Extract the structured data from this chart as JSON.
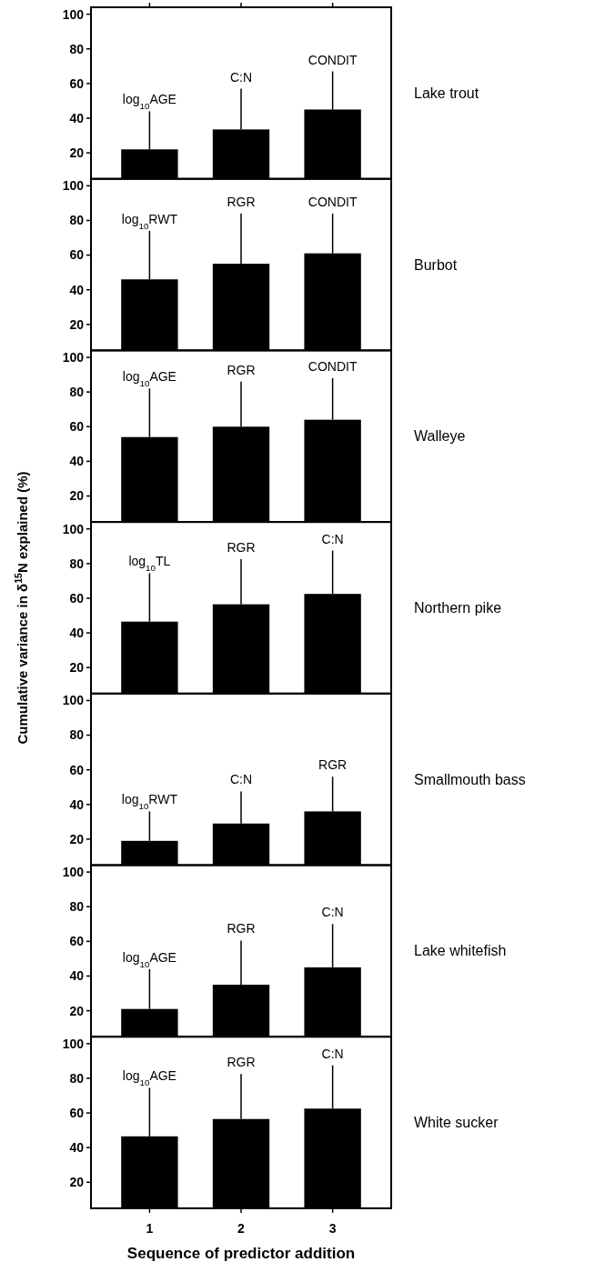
{
  "chart_data": [
    {
      "type": "bar",
      "y2label": "Lake trout",
      "categories": [
        "1",
        "2",
        "3"
      ],
      "values": [
        22,
        33.5,
        45
      ],
      "errors": [
        [
          22,
          44
        ],
        [
          33.5,
          57
        ],
        [
          45,
          67
        ]
      ],
      "color": "#000000",
      "ylim": [
        5,
        104
      ],
      "yticks": [
        20,
        40,
        60,
        80,
        100
      ],
      "tick_labels": "y",
      "annotations": [
        "log$_{10}$AGE",
        "C:N",
        "CONDIT"
      ]
    },
    {
      "type": "bar",
      "y2label": "Burbot",
      "categories": [
        "1",
        "2",
        "3"
      ],
      "values": [
        46,
        55,
        61
      ],
      "errors": [
        [
          46,
          74
        ],
        [
          55,
          84
        ],
        [
          61,
          84
        ]
      ],
      "color": "#000000",
      "ylim": [
        5,
        104
      ],
      "yticks": [
        20,
        40,
        60,
        80,
        100
      ],
      "tick_labels": "y",
      "annotations": [
        "log$_{10}$RWT",
        "RGR",
        "CONDIT"
      ]
    },
    {
      "type": "bar",
      "y2label": "Walleye",
      "categories": [
        "1",
        "2",
        "3"
      ],
      "values": [
        54,
        60,
        64
      ],
      "errors": [
        [
          54,
          82
        ],
        [
          60,
          86
        ],
        [
          64,
          88
        ]
      ],
      "color": "#000000",
      "ylim": [
        5,
        104
      ],
      "yticks": [
        20,
        40,
        60,
        80,
        100
      ],
      "tick_labels": "y",
      "annotations": [
        "log$_{10}$AGE",
        "RGR",
        "CONDIT"
      ]
    },
    {
      "type": "bar",
      "y2label": "Northern pike",
      "ylabel": "Cumulative variance in δ$^{15}$N explained (%)",
      "categories": [
        "1",
        "2",
        "3"
      ],
      "values": [
        46.5,
        56.5,
        62.5
      ],
      "errors": [
        [
          46.5,
          74.5
        ],
        [
          56.5,
          82.5
        ],
        [
          62.5,
          87.5
        ]
      ],
      "color": "#000000",
      "ylim": [
        5,
        104
      ],
      "yticks": [
        20,
        40,
        60,
        80,
        100
      ],
      "tick_labels": "y",
      "annotations": [
        "log$_{10}$TL",
        "RGR",
        "C:N"
      ]
    },
    {
      "type": "bar",
      "y2label": "Smallmouth bass",
      "categories": [
        "1",
        "2",
        "3"
      ],
      "values": [
        19,
        29,
        36
      ],
      "errors": [
        [
          19,
          36
        ],
        [
          29,
          47.5
        ],
        [
          36,
          56
        ]
      ],
      "color": "#000000",
      "ylim": [
        5,
        104
      ],
      "yticks": [
        20,
        40,
        60,
        80,
        100
      ],
      "tick_labels": "y",
      "annotations": [
        "log$_{10}$RWT",
        "C:N",
        "RGR"
      ]
    },
    {
      "type": "bar",
      "y2label": "Lake whitefish",
      "categories": [
        "1",
        "2",
        "3"
      ],
      "values": [
        21,
        35,
        45
      ],
      "errors": [
        [
          21,
          44
        ],
        [
          35,
          60.5
        ],
        [
          45,
          70
        ]
      ],
      "color": "#000000",
      "ylim": [
        5,
        104
      ],
      "yticks": [
        20,
        40,
        60,
        80,
        100
      ],
      "tick_labels": "y",
      "annotations": [
        "log$_{10}$AGE",
        "RGR",
        "C:N"
      ]
    },
    {
      "type": "bar",
      "y2label": "White sucker",
      "xlabel": "Sequence of predictor addition",
      "categories": [
        "1",
        "2",
        "3"
      ],
      "values": [
        46.5,
        56.5,
        62.5
      ],
      "errors": [
        [
          46.5,
          74.5
        ],
        [
          56.5,
          82.5
        ],
        [
          62.5,
          87.5
        ]
      ],
      "color": "#000000",
      "ylim": [
        5,
        104
      ],
      "yticks": [
        20,
        40,
        60,
        80,
        100
      ],
      "annotations": [
        "log$_{10}$AGE",
        "RGR",
        "C:N"
      ]
    }
  ]
}
